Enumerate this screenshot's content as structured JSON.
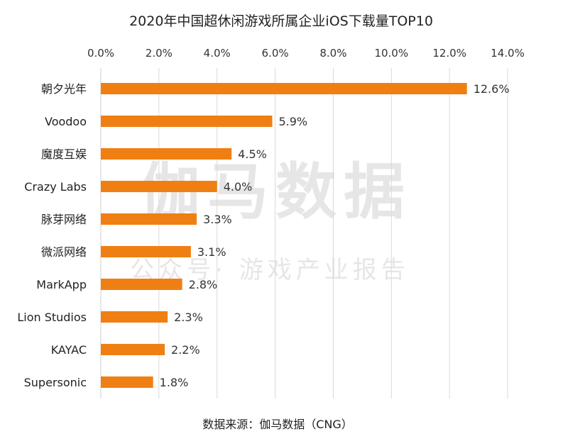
{
  "watermark": {
    "main": "伽马数据",
    "sub": "公众号· 游戏产业报告"
  },
  "source": "数据来源：伽马数据（CNG）",
  "colors": {
    "bar": "#f07f13"
  },
  "chart_data": {
    "type": "bar",
    "orientation": "horizontal",
    "title": "2020年中国超休闲游戏所属企业iOS下载量TOP10",
    "xlabel": "",
    "ylabel": "",
    "xlim": [
      0,
      14
    ],
    "x_ticks": [
      "0.0%",
      "2.0%",
      "4.0%",
      "6.0%",
      "8.0%",
      "10.0%",
      "12.0%",
      "14.0%"
    ],
    "x_tick_values": [
      0,
      2,
      4,
      6,
      8,
      10,
      12,
      14
    ],
    "grid": true,
    "categories": [
      "朝夕光年",
      "Voodoo",
      "魔度互娱",
      "Crazy Labs",
      "脉芽网络",
      "微派网络",
      "MarkApp",
      "Lion Studios",
      "KAYAC",
      "Supersonic"
    ],
    "values": [
      12.6,
      5.9,
      4.5,
      4.0,
      3.3,
      3.1,
      2.8,
      2.3,
      2.2,
      1.8
    ],
    "value_labels": [
      "12.6%",
      "5.9%",
      "4.5%",
      "4.0%",
      "3.3%",
      "3.1%",
      "2.8%",
      "2.3%",
      "2.2%",
      "1.8%"
    ]
  }
}
